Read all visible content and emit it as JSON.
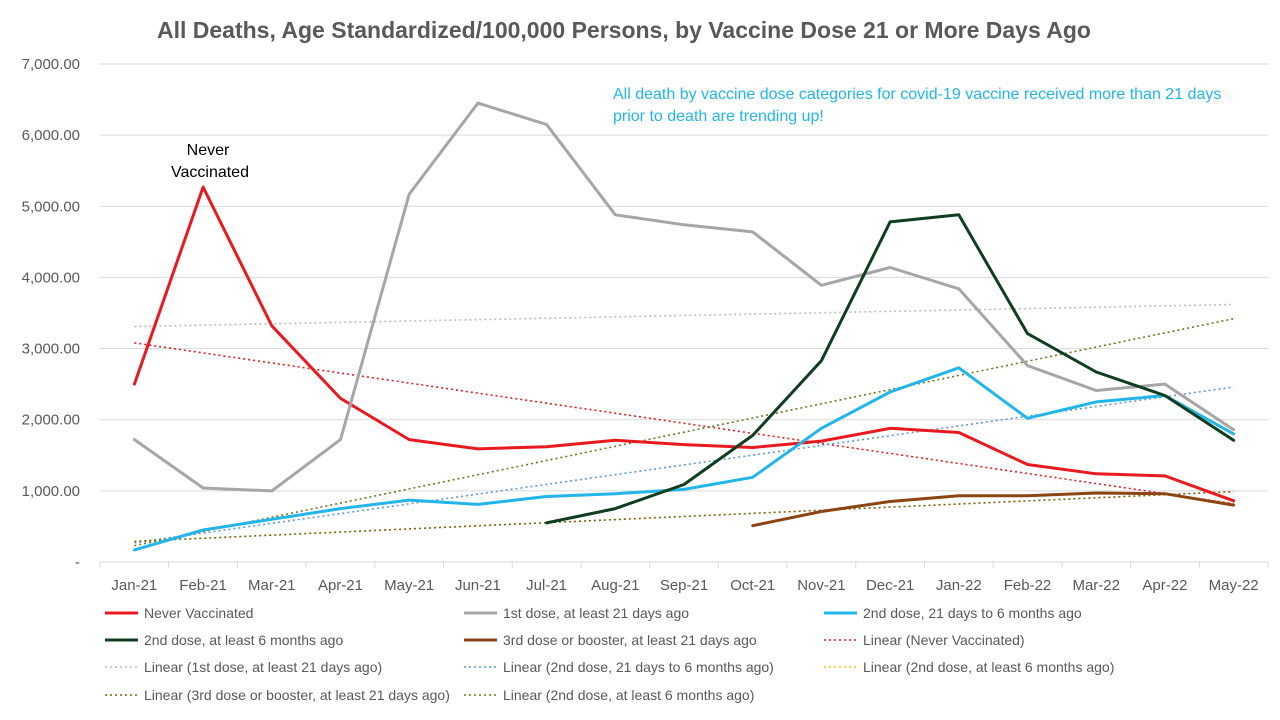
{
  "chart_data": {
    "type": "line",
    "title": "All Deaths, Age Standardized/100,000 Persons, by Vaccine Dose 21 or More Days Ago",
    "categories": [
      "Jan-21",
      "Feb-21",
      "Mar-21",
      "Apr-21",
      "May-21",
      "Jun-21",
      "Jul-21",
      "Aug-21",
      "Sep-21",
      "Oct-21",
      "Nov-21",
      "Dec-21",
      "Jan-22",
      "Feb-22",
      "Mar-22",
      "Apr-22",
      "May-22"
    ],
    "ylim": [
      0,
      7000
    ],
    "yticks": [
      {
        "value": 0,
        "label": "-"
      },
      {
        "value": 1000,
        "label": "1,000.00"
      },
      {
        "value": 2000,
        "label": "2,000.00"
      },
      {
        "value": 3000,
        "label": "3,000.00"
      },
      {
        "value": 4000,
        "label": "4,000.00"
      },
      {
        "value": 5000,
        "label": "5,000.00"
      },
      {
        "value": 6000,
        "label": "6,000.00"
      },
      {
        "value": 7000,
        "label": "7,000.00"
      }
    ],
    "grid": true,
    "legend_position": "bottom",
    "series": [
      {
        "name": "Never Vaccinated",
        "color": "#e8191f",
        "values": [
          2500,
          5270,
          3320,
          2300,
          1720,
          1590,
          1620,
          1710,
          1650,
          1610,
          1700,
          1880,
          1820,
          1370,
          1240,
          1210,
          860
        ]
      },
      {
        "name": "1st dose, at least 21 days ago",
        "color": "#a6a6a6",
        "values": [
          1720,
          1040,
          1000,
          1720,
          5170,
          6450,
          6150,
          4880,
          4740,
          4640,
          3890,
          4140,
          3840,
          2760,
          2410,
          2500,
          1860
        ]
      },
      {
        "name": "2nd dose, 21 days to 6 months ago",
        "color": "#22b5ea",
        "values": [
          170,
          450,
          600,
          750,
          870,
          810,
          920,
          960,
          1020,
          1190,
          1880,
          2390,
          2730,
          2020,
          2250,
          2340,
          1800
        ]
      },
      {
        "name": "2nd dose, at least 6 months ago",
        "color": "#0f3d20",
        "values": [
          null,
          null,
          null,
          null,
          null,
          null,
          550,
          750,
          1090,
          1780,
          2830,
          4780,
          4880,
          3210,
          2670,
          2340,
          1710
        ]
      },
      {
        "name": "3rd dose or booster, at least 21 days ago",
        "color": "#8b4513",
        "values": [
          null,
          null,
          null,
          null,
          null,
          null,
          null,
          null,
          null,
          510,
          710,
          850,
          930,
          930,
          970,
          960,
          800
        ]
      }
    ],
    "trendlines": [
      {
        "name": "Linear (Never Vaccinated)",
        "color": "#e8191f",
        "start": 3080,
        "end": 820
      },
      {
        "name": "Linear (1st dose, at least 21 days ago)",
        "color": "#bdbdbd",
        "start": 3310,
        "end": 3620
      },
      {
        "name": "Linear (2nd dose, 21 days to 6 months ago)",
        "color": "#5b9bd5",
        "start": 270,
        "end": 2460
      },
      {
        "name": "Linear (2nd dose, at least 6 months ago)",
        "color": "#ffc000",
        "start": null,
        "end": null
      },
      {
        "name": "Linear (3rd dose or booster, at least 21 days ago)",
        "color": "#7f6000",
        "start": 290,
        "end": 990
      },
      {
        "name": "Linear (2nd dose, at least 6 months ago)",
        "color": "#6b7a1f",
        "start": 230,
        "end": 3420
      }
    ],
    "annotations": [
      {
        "text": "Never",
        "color": "#000000"
      },
      {
        "text": "Vaccinated",
        "color": "#000000"
      },
      {
        "text": "All death by vaccine dose categories for covid-19 vaccine received more than 21 days",
        "color": "#22b5ea"
      },
      {
        "text": "prior to death are trending up!",
        "color": "#22b5ea"
      }
    ]
  }
}
